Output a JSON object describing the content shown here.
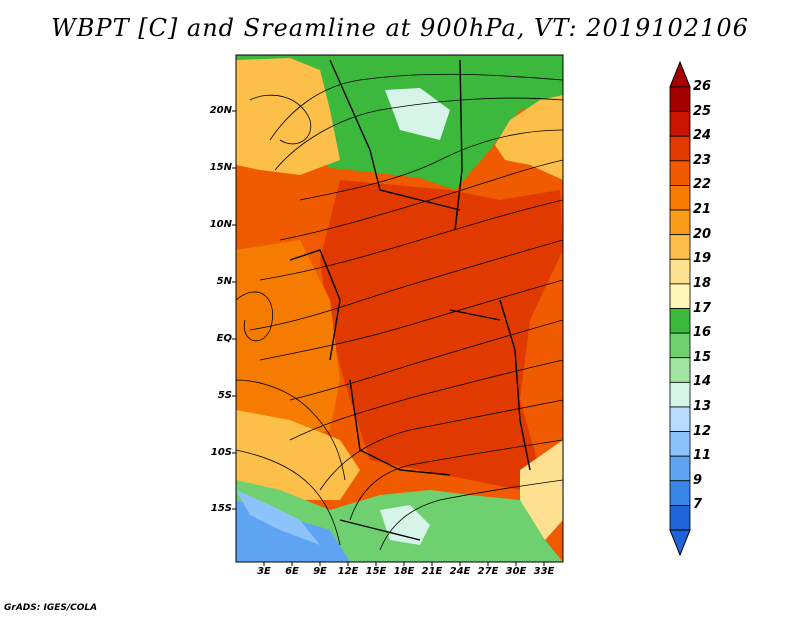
{
  "title": "WBPT [C] and Sreamline at 900hPa, VT: 2019102106",
  "credit": "GrADS: IGES/COLA",
  "y_axis_labels": [
    "20N",
    "15N",
    "10N",
    "5N",
    "EQ",
    "5S",
    "10S",
    "15S"
  ],
  "x_axis_labels": [
    "3E",
    "6E",
    "9E",
    "12E",
    "15E",
    "18E",
    "21E",
    "24E",
    "27E",
    "30E",
    "33E"
  ],
  "colorbar": {
    "labels": [
      "26",
      "25",
      "24",
      "23",
      "22",
      "21",
      "20",
      "19",
      "18",
      "17",
      "16",
      "15",
      "14",
      "13",
      "12",
      "11",
      "9",
      "7"
    ],
    "colors": [
      "#a50000",
      "#c81400",
      "#e03a00",
      "#f05a00",
      "#f57c00",
      "#f99d1a",
      "#fbbf4a",
      "#fde090",
      "#fff6b8",
      "#3cb83c",
      "#6fd06f",
      "#a3e6a3",
      "#d6f5e8",
      "#b7dcff",
      "#8cc3fa",
      "#5ea4f2",
      "#3a86e6",
      "#1f64d8"
    ],
    "top_color": "#a50000",
    "bottom_color": "#1f64d8"
  },
  "field_colors": {
    "hot": "#e03a00",
    "warm": "#f05a00",
    "orange": "#f57c00",
    "light_orange": "#fbbf4a",
    "yellow": "#fde090",
    "green": "#3cb83c",
    "light_green": "#6fd06f",
    "pale": "#d6f5e8",
    "blue": "#5ea4f2",
    "light_blue": "#8cc3fa"
  }
}
